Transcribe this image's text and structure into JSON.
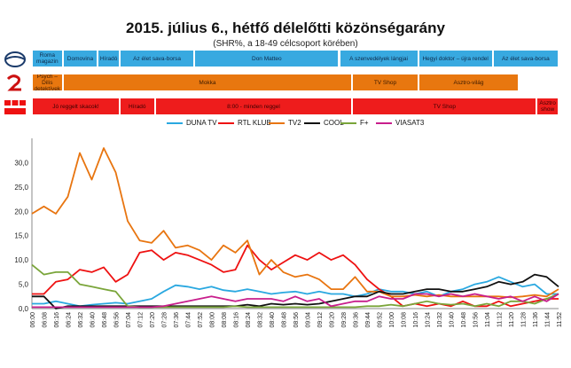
{
  "title": "2015. július 6., hétfő délelőtti közönségarány",
  "subtitle": "(SHR%, a 18-49 célcsoport körében)",
  "logos": {
    "duna": "duna-tv-logo",
    "tv2": "tv2-logo",
    "rtl": "rtl-klub-logo"
  },
  "schedules": {
    "duna": {
      "color": "#38a9e0",
      "text_color": "#0f2a4a",
      "items": [
        {
          "label": "Roma magazin",
          "start": 0,
          "end": 7
        },
        {
          "label": "Domovina",
          "start": 7,
          "end": 15
        },
        {
          "label": "Híradó",
          "start": 15,
          "end": 20
        },
        {
          "label": "Az élet sava-borsa",
          "start": 20,
          "end": 37
        },
        {
          "label": "Don Matteo",
          "start": 37,
          "end": 70
        },
        {
          "label": "A szenvedélyek lángjai",
          "start": 70,
          "end": 88
        },
        {
          "label": "Hegyi doktor – újra rendel",
          "start": 88,
          "end": 105
        },
        {
          "label": "Az élet sava-borsa",
          "start": 105,
          "end": 120
        }
      ]
    },
    "tv2": {
      "color": "#e8770f",
      "text_color": "#3a1a00",
      "items": [
        {
          "label": "Psych – Dilis detektívek",
          "start": 0,
          "end": 7
        },
        {
          "label": "Mokka",
          "start": 7,
          "end": 73
        },
        {
          "label": "TV Shop",
          "start": 73,
          "end": 88
        },
        {
          "label": "Asztro-világ",
          "start": 88,
          "end": 111
        }
      ]
    },
    "rtl": {
      "color": "#ee1c1c",
      "text_color": "#3a0000",
      "items": [
        {
          "label": "Jó reggelt skacok!",
          "start": 0,
          "end": 20
        },
        {
          "label": "Híradó",
          "start": 20,
          "end": 28
        },
        {
          "label": "8:00 - minden reggel",
          "start": 28,
          "end": 73
        },
        {
          "label": "TV Shop",
          "start": 73,
          "end": 115
        },
        {
          "label": "Asztro show",
          "start": 115,
          "end": 120
        }
      ]
    }
  },
  "chart_data": {
    "type": "line",
    "title": "2015. július 6., hétfő délelőtti közönségarány",
    "subtitle": "(SHR%, a 18-49 célcsoport körében)",
    "xlabel": "",
    "ylabel": "",
    "ylim": [
      0,
      35
    ],
    "yticks": [
      "0,0",
      "5,0",
      "10,0",
      "15,0",
      "20,0",
      "25,0",
      "30,0"
    ],
    "x": [
      "06:00",
      "06:08",
      "06:16",
      "06:24",
      "06:32",
      "06:40",
      "06:48",
      "06:56",
      "07:04",
      "07:12",
      "07:20",
      "07:28",
      "07:36",
      "07:44",
      "07:52",
      "08:00",
      "08:08",
      "08:16",
      "08:24",
      "08:32",
      "08:40",
      "08:48",
      "08:56",
      "09:04",
      "09:12",
      "09:20",
      "09:28",
      "09:36",
      "09:44",
      "09:52",
      "10:00",
      "10:08",
      "10:16",
      "10:24",
      "10:32",
      "10:40",
      "10:48",
      "10:56",
      "11:04",
      "11:12",
      "11:20",
      "11:28",
      "11:36",
      "11:44",
      "11:52"
    ],
    "legend_position": "top",
    "grid": false,
    "series": [
      {
        "name": "DUNA TV",
        "color": "#2aa8e0",
        "values": [
          1,
          1,
          1.5,
          1,
          0.5,
          0.8,
          1,
          1.2,
          1,
          1.5,
          2,
          3.5,
          4.8,
          4.5,
          4,
          4.5,
          3.8,
          3.5,
          4,
          3.5,
          3,
          3.3,
          3.5,
          3,
          3.5,
          3,
          3,
          2.5,
          3,
          4,
          3.5,
          3.5,
          3,
          3.5,
          2.5,
          3.5,
          4,
          5,
          5.5,
          6.5,
          5.5,
          4.5,
          5,
          3,
          3
        ]
      },
      {
        "name": "RTL KLUB",
        "color": "#ee1111",
        "values": [
          3,
          3,
          5.5,
          6,
          8,
          7.5,
          8.5,
          5.5,
          7,
          11.5,
          12,
          10,
          11.5,
          11,
          10,
          9,
          7.5,
          8,
          13,
          10,
          8,
          9.5,
          11,
          10,
          11.5,
          10,
          11,
          9,
          6,
          4,
          2.5,
          0.5,
          1,
          0.5,
          1,
          0.5,
          1.5,
          0.5,
          0.5,
          1.5,
          0.5,
          1,
          1.5,
          2,
          2
        ]
      },
      {
        "name": "TV2",
        "color": "#e87510",
        "values": [
          19.5,
          21,
          19.5,
          23,
          32,
          26.5,
          33,
          28,
          18,
          14,
          13.5,
          16,
          12.5,
          13,
          12,
          10,
          13,
          11.5,
          14,
          7,
          10,
          7.5,
          6.5,
          7,
          6,
          4,
          4,
          6.5,
          3.5,
          3.5,
          2.5,
          2.5,
          2.8,
          2.5,
          2.8,
          2.5,
          2.5,
          2.5,
          2.5,
          2.5,
          2.3,
          2.5,
          2.8,
          2.5,
          4
        ]
      },
      {
        "name": "COOL",
        "color": "#111111",
        "values": [
          2.5,
          2.5,
          0,
          0.5,
          0.5,
          0.5,
          0.5,
          0.5,
          0.5,
          0.5,
          0.5,
          0.5,
          0.5,
          0.5,
          0.5,
          0.5,
          0.5,
          0.5,
          0.8,
          0.5,
          1,
          0.8,
          1,
          0.8,
          1,
          1.5,
          2,
          2.5,
          2.5,
          3.5,
          3,
          3,
          3.5,
          4,
          4,
          3.5,
          3.5,
          4,
          4.5,
          5.5,
          5,
          5.5,
          7,
          6.5,
          4.5
        ]
      },
      {
        "name": "F+",
        "color": "#7aa53a",
        "values": [
          9,
          7,
          7.5,
          7.5,
          5,
          4.5,
          4,
          3.5,
          0.5,
          0.3,
          0.3,
          0.3,
          0.3,
          0.3,
          0.3,
          0.3,
          0.3,
          0.5,
          0.3,
          0.3,
          0.3,
          0.3,
          0.3,
          0.3,
          0.3,
          0.3,
          0.3,
          0.3,
          0.5,
          0.5,
          0.8,
          0.5,
          1,
          1.5,
          1,
          0.8,
          1,
          0.5,
          1,
          0.5,
          1.5,
          1.5,
          1,
          2,
          3
        ]
      },
      {
        "name": "VIASAT3",
        "color": "#c81e8c",
        "values": [
          0.3,
          0.3,
          0.3,
          0.3,
          0.3,
          0.3,
          0.3,
          0.3,
          0.3,
          0.3,
          0.3,
          0.5,
          1,
          1.5,
          2,
          2.5,
          2,
          1.5,
          2,
          2,
          2,
          1.5,
          2.5,
          1.5,
          2,
          0.5,
          1,
          1.5,
          1.5,
          2.5,
          2,
          2,
          3,
          3,
          2.5,
          3,
          2.5,
          3,
          2.5,
          2,
          2.5,
          1.5,
          2.5,
          1.5,
          3
        ]
      }
    ]
  }
}
